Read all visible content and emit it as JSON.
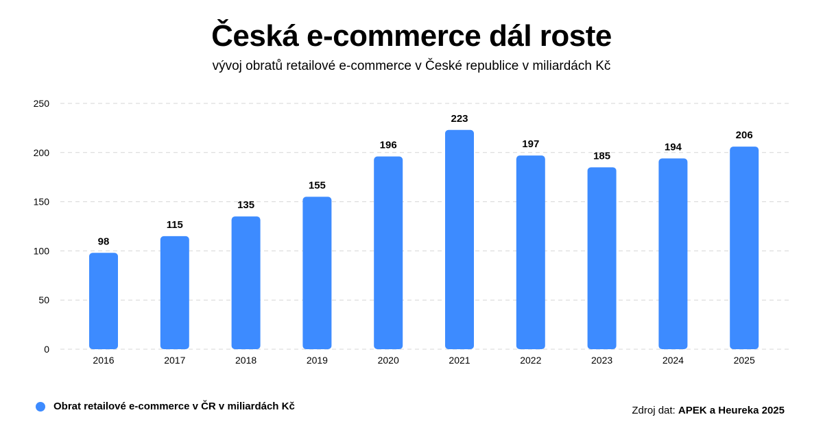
{
  "chart_data": {
    "type": "bar",
    "title": "Česká e-commerce dál roste",
    "subtitle": "vývoj obratů retailové e-commerce v České republice v miliardách Kč",
    "categories": [
      "2016",
      "2017",
      "2018",
      "2019",
      "2020",
      "2021",
      "2022",
      "2023",
      "2024",
      "2025"
    ],
    "series": [
      {
        "name": "Obrat retailové e-commerce v ČR v miliardách Kč",
        "values": [
          98,
          115,
          135,
          155,
          196,
          223,
          197,
          185,
          194,
          206
        ]
      }
    ],
    "data_labels": [
      "98",
      "115",
      "135",
      "155",
      "196",
      "223",
      "197",
      "185",
      "194",
      "206"
    ],
    "y_ticks": [
      "0",
      "50",
      "100",
      "150",
      "200",
      "250"
    ],
    "ylim": [
      0,
      250
    ],
    "grid": true,
    "legend_position": "bottom-left",
    "bar_color": "#3d8bff"
  },
  "source": {
    "prefix": "Zdroj dat:",
    "name": "APEK a Heureka 2025"
  }
}
